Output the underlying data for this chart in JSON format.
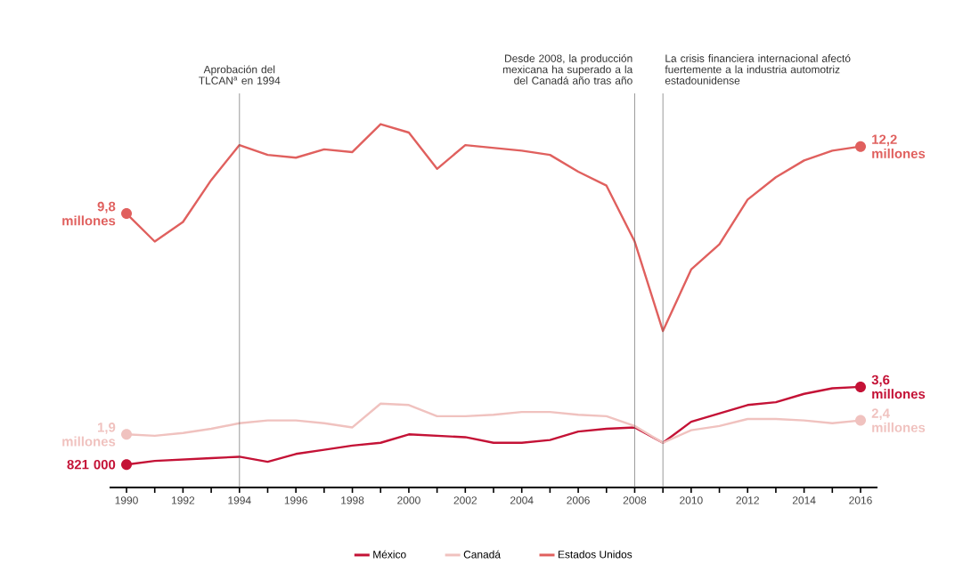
{
  "chart_data": {
    "type": "line",
    "x": [
      1990,
      1991,
      1992,
      1993,
      1994,
      1995,
      1996,
      1997,
      1998,
      1999,
      2000,
      2001,
      2002,
      2003,
      2004,
      2005,
      2006,
      2007,
      2008,
      2009,
      2010,
      2011,
      2012,
      2013,
      2014,
      2015,
      2016
    ],
    "series": [
      {
        "name": "México",
        "color": "#c41236",
        "values": [
          0.821,
          0.95,
          1.0,
          1.05,
          1.1,
          0.92,
          1.2,
          1.35,
          1.5,
          1.6,
          1.9,
          1.85,
          1.8,
          1.6,
          1.6,
          1.7,
          2.0,
          2.1,
          2.15,
          1.6,
          2.35,
          2.65,
          2.95,
          3.05,
          3.35,
          3.55,
          3.6
        ],
        "value_labels": [
          null,
          null,
          null,
          null,
          null,
          null,
          null,
          null,
          null,
          null,
          null,
          null,
          null,
          null,
          null,
          null,
          null,
          null,
          null,
          null,
          null,
          null,
          null,
          null,
          null,
          null,
          "3,6 millones"
        ]
      },
      {
        "name": "Canadá",
        "color": "#f0c2bf",
        "values": [
          1.9,
          1.85,
          1.95,
          2.1,
          2.3,
          2.4,
          2.4,
          2.3,
          2.15,
          3.0,
          2.95,
          2.55,
          2.55,
          2.6,
          2.7,
          2.7,
          2.6,
          2.55,
          2.2,
          1.6,
          2.05,
          2.2,
          2.45,
          2.45,
          2.4,
          2.3,
          2.4
        ],
        "value_labels": [
          "1,9 millones",
          null,
          null,
          null,
          null,
          null,
          null,
          null,
          null,
          null,
          null,
          null,
          null,
          null,
          null,
          null,
          null,
          null,
          null,
          null,
          null,
          null,
          null,
          null,
          null,
          null,
          "2,4 millones"
        ]
      },
      {
        "name": "Estados Unidos",
        "color": "#e0605e",
        "values": [
          9.8,
          8.8,
          9.5,
          11.0,
          12.25,
          11.9,
          11.8,
          12.1,
          12.0,
          13.0,
          12.7,
          11.4,
          12.25,
          12.15,
          12.05,
          11.9,
          11.3,
          10.8,
          8.8,
          5.6,
          7.8,
          8.7,
          10.3,
          11.1,
          11.7,
          12.05,
          12.2
        ],
        "value_labels": [
          "9,8 millones",
          null,
          null,
          null,
          null,
          null,
          null,
          null,
          null,
          null,
          null,
          null,
          null,
          null,
          null,
          null,
          null,
          null,
          null,
          null,
          null,
          null,
          null,
          null,
          null,
          null,
          "12,2 millones"
        ]
      }
    ],
    "annotations": [
      "821 000"
    ],
    "xlim": [
      1989.4,
      2016.6
    ],
    "ylim": [
      0,
      14.1
    ],
    "xticks": [
      1990,
      {
        "value": 1991,
        "label": null
      },
      1992,
      {
        "value": 1993,
        "label": null
      },
      1994,
      {
        "value": 1995,
        "label": null
      },
      1996,
      {
        "value": 1997,
        "label": null
      },
      1998,
      {
        "value": 1999,
        "label": null
      },
      2000,
      {
        "value": 2001,
        "label": null
      },
      2002,
      {
        "value": 2003,
        "label": null
      },
      2004,
      {
        "value": 2005,
        "label": null
      },
      2006,
      {
        "value": 2007,
        "label": null
      },
      2008,
      {
        "value": 2009,
        "label": null
      },
      2010,
      {
        "value": 2011,
        "label": null
      },
      2012,
      {
        "value": 2013,
        "label": null
      },
      2014,
      {
        "value": 2015,
        "label": null
      },
      2016
    ],
    "tick_labels": "x",
    "grid": false,
    "legend": "bottom",
    "line_style": "solid",
    "ref_lines": [
      {
        "axis": "x",
        "value": 1994,
        "label": "Aprobación del TLCAN$^{a}$ en 1994",
        "color": "#555555"
      },
      {
        "axis": "x",
        "value": 2008,
        "label": "Desde 2008, la producción mexicana ha superado a la del Canadá año tras año",
        "color": "#555555"
      },
      {
        "axis": "x",
        "value": 2009,
        "label": "La crisis financiera internacional afectó fuertemente a la industria automotriz estadounidense",
        "color": "#555555"
      }
    ]
  }
}
